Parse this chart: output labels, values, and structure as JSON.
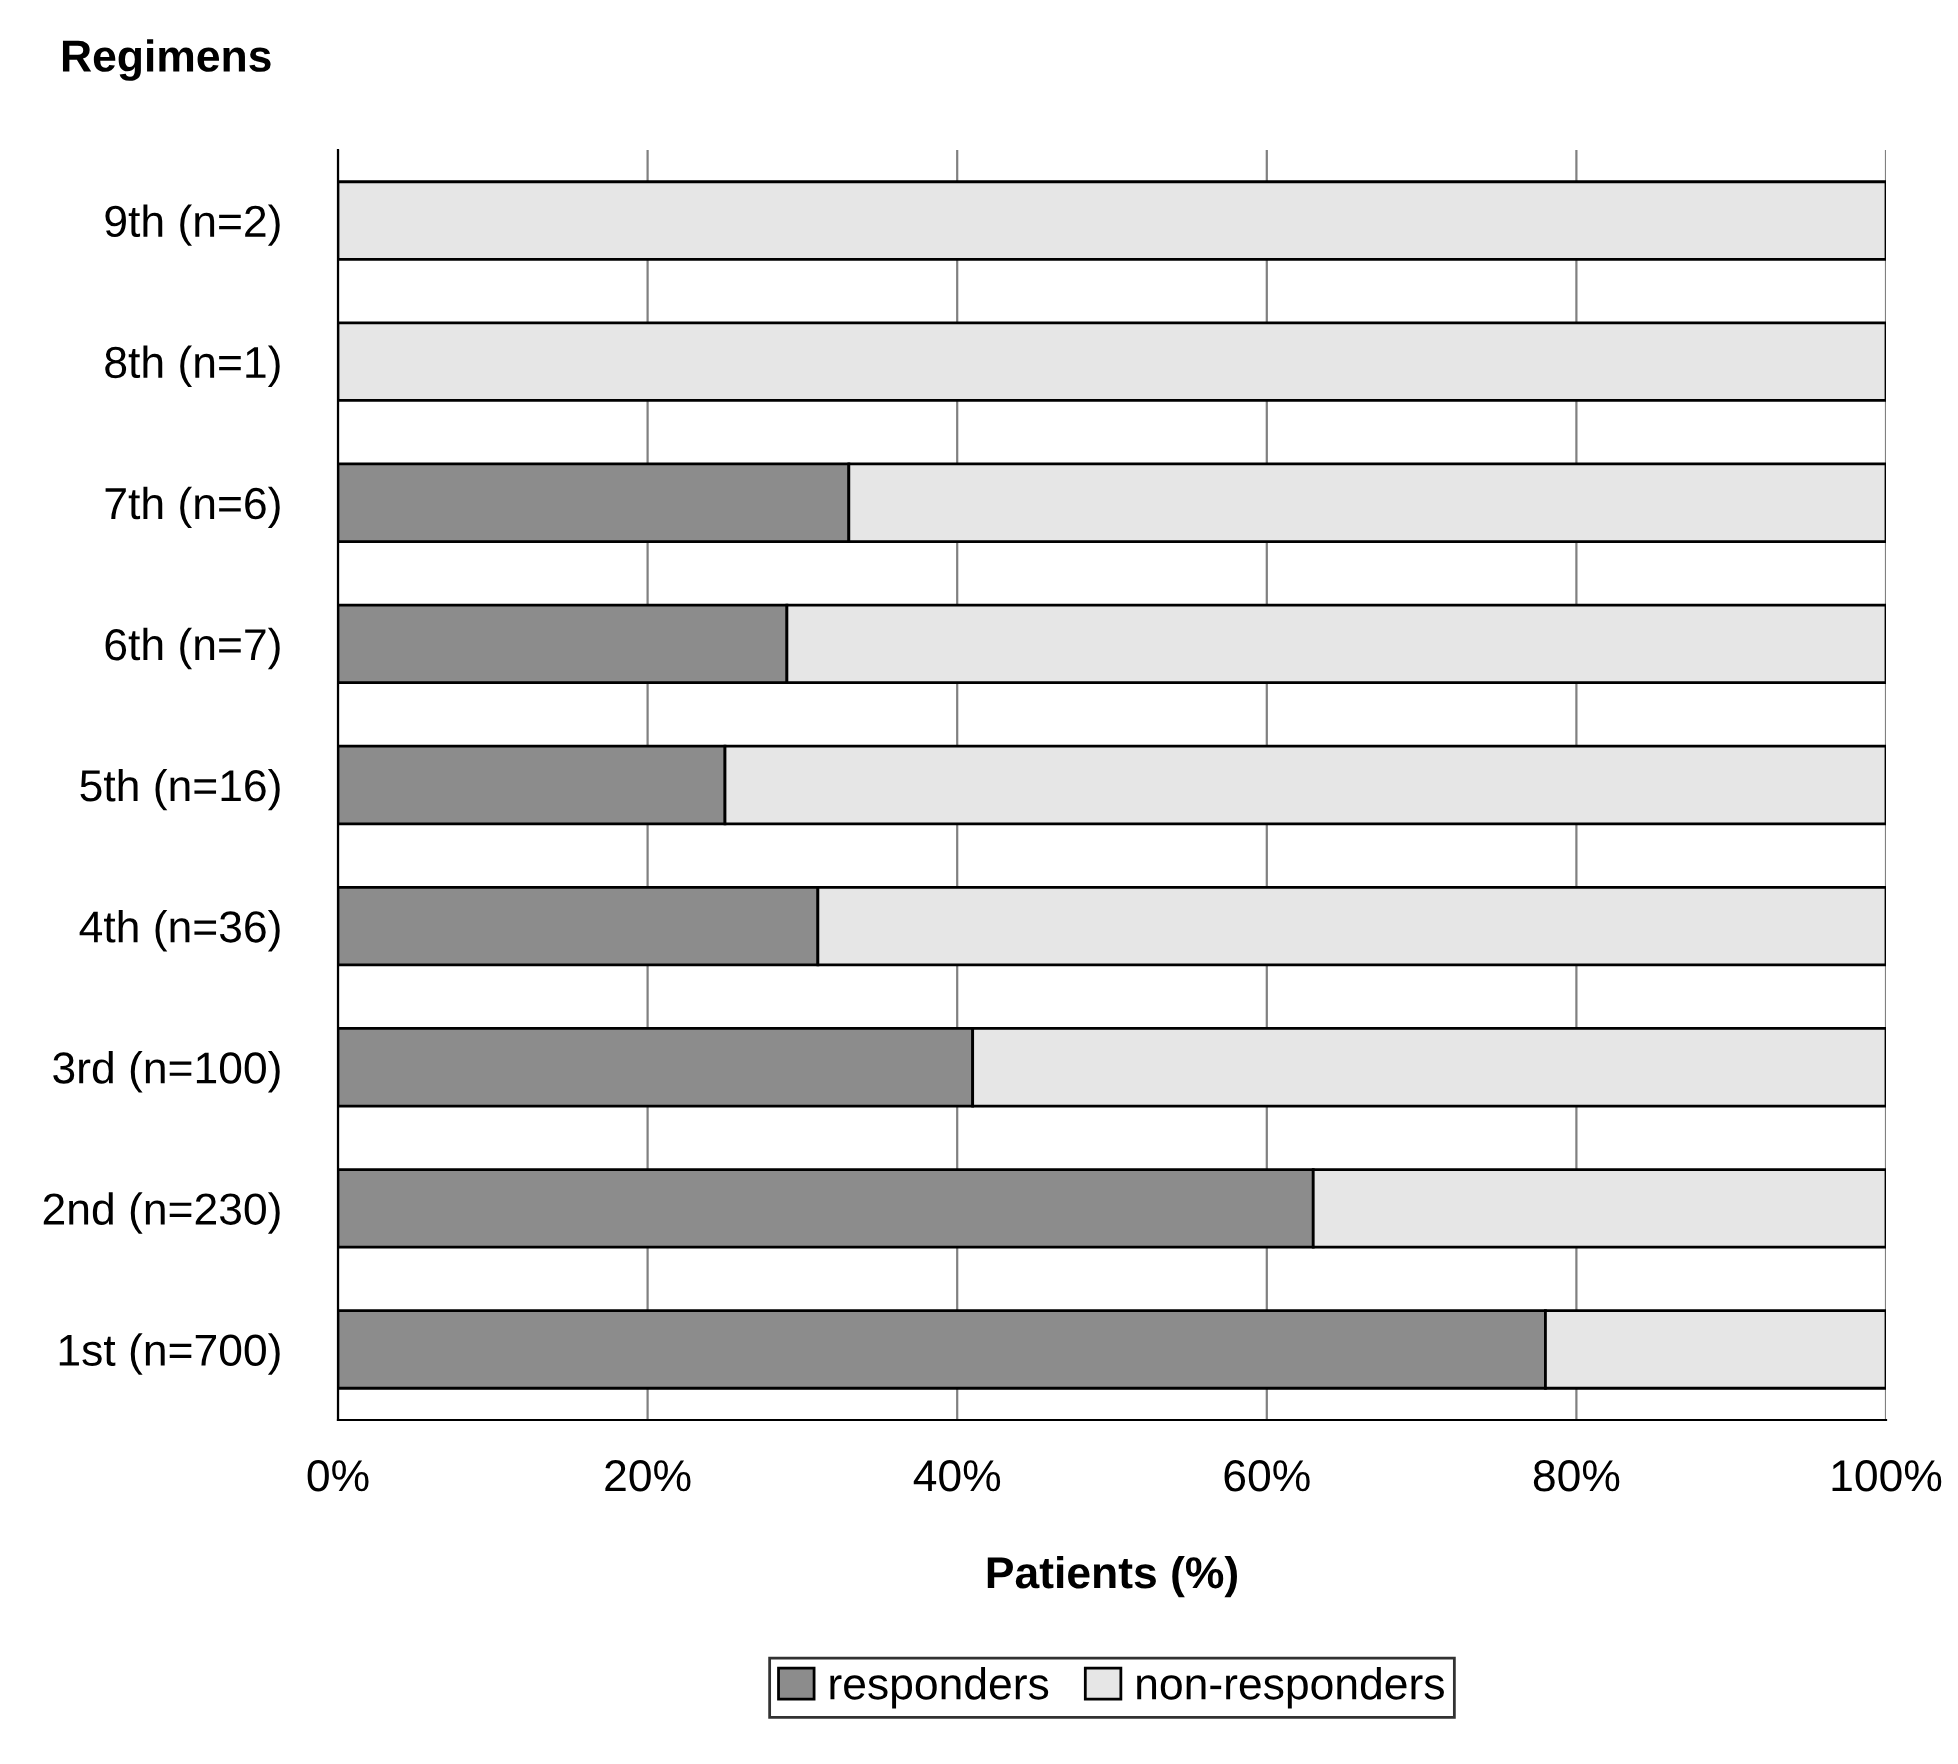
{
  "chart_data": {
    "type": "bar",
    "orientation": "horizontal",
    "stacked": true,
    "title": "Regimens",
    "xlabel": "Patients (%)",
    "categories": [
      "9th (n=2)",
      "8th (n=1)",
      "7th (n=6)",
      "6th (n=7)",
      "5th (n=16)",
      "4th (n=36)",
      "3rd (n=100)",
      "2nd (n=230)",
      "1st (n=700)"
    ],
    "series": [
      {
        "name": "responders",
        "color": "#8c8c8c",
        "values": [
          0,
          0,
          33,
          29,
          25,
          31,
          41,
          63,
          78
        ]
      },
      {
        "name": "non-responders",
        "color": "#e6e6e6",
        "values": [
          100,
          100,
          67,
          71,
          75,
          69,
          59,
          37,
          22
        ]
      }
    ],
    "xlim": [
      0,
      100
    ],
    "xticks": [
      {
        "value": 0,
        "label": "0%"
      },
      {
        "value": 20,
        "label": "20%"
      },
      {
        "value": 40,
        "label": "40%"
      },
      {
        "value": 60,
        "label": "60%"
      },
      {
        "value": 80,
        "label": "80%"
      },
      {
        "value": 100,
        "label": "100%"
      }
    ],
    "grid": "x",
    "legend": "bottom"
  }
}
